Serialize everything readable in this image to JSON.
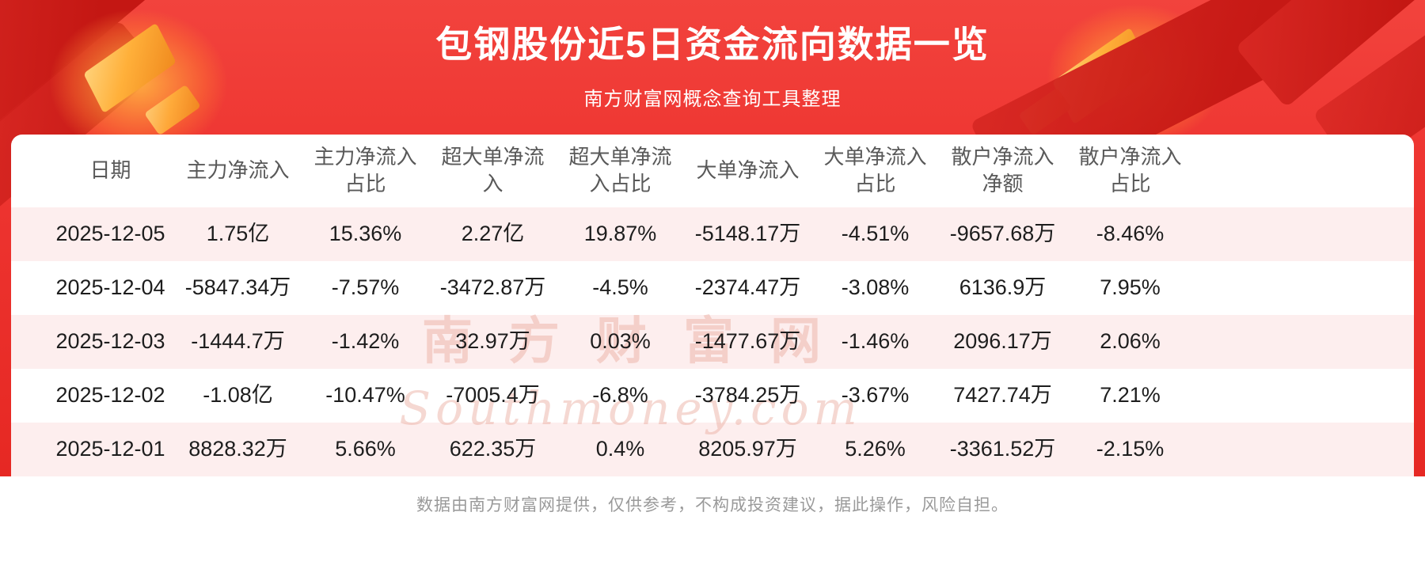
{
  "page": {
    "title": "包钢股份近5日资金流向数据一览",
    "subtitle": "南方财富网概念查询工具整理",
    "disclaimer": "数据由南方财富网提供，仅供参考，不构成投资建议，据此操作，风险自担。"
  },
  "watermark": {
    "cn": "南方财富网",
    "en": "Southmoney.com"
  },
  "colors": {
    "banner_red": "#ee3531",
    "banner_red_dark": "#c41713",
    "accent_gold": "#ffb03a",
    "row_pink": "#fdeeee",
    "row_white": "#ffffff",
    "header_text": "#595959",
    "cell_text": "#1d1d1d",
    "disclaimer_text": "#9a9a9a"
  },
  "chart_data": {
    "type": "table",
    "title": "包钢股份近5日资金流向数据一览",
    "columns": [
      "日期",
      "主力净流入",
      "主力净流入占比",
      "超大单净流入",
      "超大单净流入占比",
      "大单净流入",
      "大单净流入占比",
      "散户净流入净额",
      "散户净流入占比"
    ],
    "rows": [
      [
        "2025-12-05",
        "1.75亿",
        "15.36%",
        "2.27亿",
        "19.87%",
        "-5148.17万",
        "-4.51%",
        "-9657.68万",
        "-8.46%"
      ],
      [
        "2025-12-04",
        "-5847.34万",
        "-7.57%",
        "-3472.87万",
        "-4.5%",
        "-2374.47万",
        "-3.08%",
        "6136.9万",
        "7.95%"
      ],
      [
        "2025-12-03",
        "-1444.7万",
        "-1.42%",
        "32.97万",
        "0.03%",
        "-1477.67万",
        "-1.46%",
        "2096.17万",
        "2.06%"
      ],
      [
        "2025-12-02",
        "-1.08亿",
        "-10.47%",
        "-7005.4万",
        "-6.8%",
        "-3784.25万",
        "-3.67%",
        "7427.74万",
        "7.21%"
      ],
      [
        "2025-12-01",
        "8828.32万",
        "5.66%",
        "622.35万",
        "0.4%",
        "8205.97万",
        "5.26%",
        "-3361.52万",
        "-2.15%"
      ]
    ]
  }
}
